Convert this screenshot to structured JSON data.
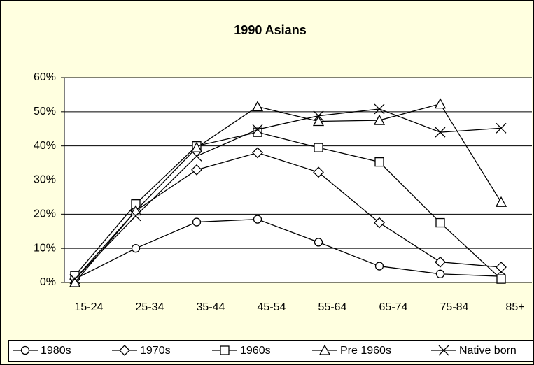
{
  "chart_data": {
    "type": "line",
    "title": "1990 Asians",
    "categories": [
      "15-24",
      "25-34",
      "35-44",
      "45-54",
      "55-64",
      "65-74",
      "75-84",
      "85+"
    ],
    "series": [
      {
        "name": "1980s",
        "color": "#000000",
        "marker": "circle",
        "values": [
          1,
          10,
          17.7,
          18.5,
          11.8,
          4.8,
          2.5,
          1.8
        ]
      },
      {
        "name": "1970s",
        "color": "#000000",
        "marker": "diamond",
        "values": [
          1,
          21,
          33,
          38,
          32.3,
          17.5,
          6,
          4.5
        ]
      },
      {
        "name": "1960s",
        "color": "#000000",
        "marker": "square",
        "values": [
          2,
          23,
          40,
          44,
          39.5,
          35.3,
          17.5,
          1
        ]
      },
      {
        "name": "Pre 1960s",
        "color": "#000000",
        "marker": "triangle",
        "values": [
          0,
          21,
          39.5,
          51.5,
          47.2,
          47.5,
          52.3,
          23.5
        ]
      },
      {
        "name": "Native born",
        "color": "#000000",
        "marker": "x",
        "values": [
          1,
          19.5,
          37,
          44.8,
          48.8,
          50.8,
          44,
          45.2
        ]
      }
    ],
    "ylim": [
      0,
      60
    ],
    "yticks": [
      {
        "value": 0,
        "label": "0%"
      },
      {
        "value": 10,
        "label": "10%"
      },
      {
        "value": 20,
        "label": "20%"
      },
      {
        "value": 30,
        "label": "30%"
      },
      {
        "value": 40,
        "label": "40%"
      },
      {
        "value": 50,
        "label": "50%"
      },
      {
        "value": 60,
        "label": "60%"
      }
    ],
    "grid": true,
    "legend": "bottom"
  }
}
